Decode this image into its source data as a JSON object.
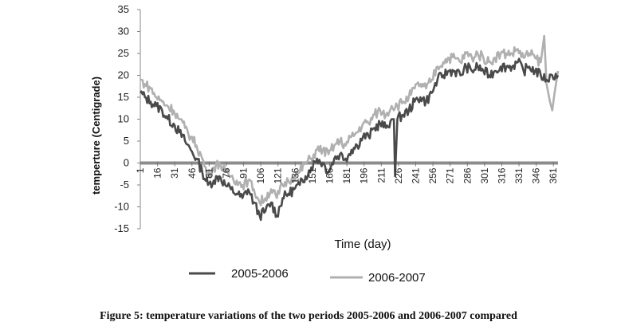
{
  "caption": "Figure 5:  temperature variations of the two periods 2005-2006 and 2006-2007 compared",
  "chart_data": {
    "type": "line",
    "title": "",
    "xlabel": "Time (day)",
    "ylabel": "temperture (Centigrade)",
    "xlim": [
      1,
      365
    ],
    "ylim": [
      -15,
      35
    ],
    "yticks": [
      -15,
      -10,
      -5,
      0,
      5,
      10,
      15,
      20,
      25,
      30,
      35
    ],
    "xticks": [
      1,
      16,
      31,
      46,
      61,
      76,
      91,
      106,
      121,
      136,
      151,
      166,
      181,
      196,
      211,
      226,
      241,
      256,
      271,
      286,
      301,
      316,
      331,
      346,
      361
    ],
    "grid": false,
    "legend_position": "bottom",
    "series": [
      {
        "name": "2005-2006",
        "color": "#4a4a4a",
        "x": [
          1,
          5,
          10,
          15,
          20,
          25,
          30,
          35,
          40,
          45,
          50,
          55,
          60,
          65,
          70,
          75,
          80,
          85,
          90,
          95,
          100,
          105,
          110,
          115,
          120,
          125,
          130,
          135,
          140,
          145,
          150,
          155,
          160,
          165,
          170,
          175,
          180,
          185,
          190,
          195,
          200,
          205,
          210,
          215,
          220,
          222,
          223,
          225,
          230,
          235,
          240,
          245,
          250,
          255,
          260,
          265,
          270,
          275,
          280,
          285,
          290,
          295,
          300,
          305,
          310,
          315,
          320,
          325,
          330,
          335,
          340,
          345,
          350,
          355,
          360,
          365
        ],
        "y": [
          16,
          15,
          14,
          13,
          12,
          10,
          9,
          7,
          5,
          3,
          1,
          -2,
          -5,
          -4,
          -3,
          -5,
          -6,
          -7,
          -8,
          -6,
          -9,
          -12,
          -11,
          -9,
          -12,
          -8,
          -7,
          -6,
          -5,
          -3,
          -1,
          1,
          0,
          -2,
          1,
          2,
          1,
          3,
          4,
          6,
          6,
          8,
          9,
          8,
          10,
          10,
          -3,
          10,
          11,
          12,
          14,
          15,
          14,
          16,
          19,
          20,
          21,
          21,
          20,
          22,
          21,
          22,
          21,
          20,
          21,
          22,
          22,
          22,
          23,
          21,
          22,
          21,
          20,
          19,
          20,
          20
        ]
      },
      {
        "name": "2006-2007",
        "color": "#b0b0b0",
        "x": [
          1,
          5,
          10,
          15,
          20,
          25,
          30,
          35,
          40,
          45,
          50,
          55,
          60,
          65,
          70,
          75,
          80,
          85,
          90,
          95,
          100,
          105,
          110,
          115,
          120,
          125,
          130,
          135,
          140,
          145,
          150,
          155,
          160,
          165,
          170,
          175,
          180,
          185,
          190,
          195,
          200,
          205,
          210,
          215,
          220,
          225,
          230,
          235,
          240,
          245,
          250,
          255,
          260,
          265,
          270,
          275,
          280,
          285,
          290,
          295,
          300,
          305,
          310,
          315,
          320,
          325,
          330,
          335,
          340,
          345,
          350,
          353,
          355,
          358,
          360,
          362,
          365
        ],
        "y": [
          19,
          18,
          17,
          15,
          14,
          13,
          12,
          10,
          8,
          6,
          4,
          1,
          -3,
          -1,
          0,
          -2,
          -3,
          -4,
          -5,
          -4,
          -6,
          -9,
          -8,
          -6,
          -8,
          -5,
          -4,
          -3,
          -2,
          0,
          1,
          3,
          3,
          2,
          4,
          5,
          4,
          6,
          7,
          9,
          9,
          11,
          12,
          11,
          13,
          13,
          14,
          15,
          17,
          18,
          17,
          19,
          22,
          23,
          24,
          24,
          23,
          25,
          24,
          25,
          24,
          23,
          24,
          25,
          25,
          25,
          26,
          24,
          25,
          24,
          23,
          29,
          18,
          14,
          12,
          16,
          21
        ]
      }
    ]
  }
}
